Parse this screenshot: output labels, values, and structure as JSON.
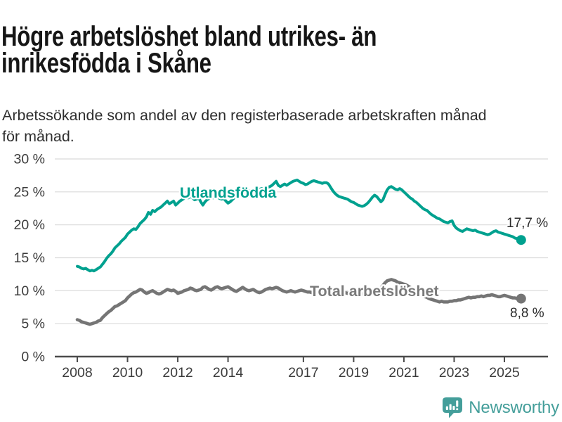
{
  "header": {
    "title_lines": [
      "Högre arbetslöshet bland utrikes- än",
      "inrikesfödda i Skåne"
    ],
    "subtitle_lines": [
      "Arbetssökande som andel av den registerbaserade arbetskraften månad",
      "för månad."
    ]
  },
  "footer": {
    "brand": "Newsworthy",
    "brand_color": "#449e9a"
  },
  "chart_data": {
    "type": "line",
    "title": "Högre arbetslöshet bland utrikes- än inrikesfödda i Skåne",
    "subtitle": "Arbetssökande som andel av den registerbaserade arbetskraften månad för månad.",
    "unit": "%",
    "grid": "horizontal",
    "legend_position": "inline-labels",
    "x": {
      "start_year": 2008,
      "start_month": 1,
      "end_year": 2025,
      "end_month": 9,
      "frequency": "monthly"
    },
    "y_axis": {
      "min": 0,
      "max": 30,
      "ticks": [
        {
          "value": 0,
          "label": "0 %"
        },
        {
          "value": 5,
          "label": "5 %"
        },
        {
          "value": 10,
          "label": "10 %"
        },
        {
          "value": 15,
          "label": "15 %"
        },
        {
          "value": 20,
          "label": "20 %"
        },
        {
          "value": 25,
          "label": "25 %"
        },
        {
          "value": 30,
          "label": "30 %"
        }
      ]
    },
    "x_axis": {
      "ticks": [
        {
          "value": 2008,
          "label": "2008"
        },
        {
          "value": 2010,
          "label": "2010"
        },
        {
          "value": 2012,
          "label": "2012"
        },
        {
          "value": 2014,
          "label": "2014"
        },
        {
          "value": 2017,
          "label": "2017"
        },
        {
          "value": 2019,
          "label": "2019"
        },
        {
          "value": 2021,
          "label": "2021"
        },
        {
          "value": 2023,
          "label": "2023"
        },
        {
          "value": 2025,
          "label": "2025"
        }
      ]
    },
    "series": [
      {
        "name": "Utlandsfödda",
        "color": "#00a18f",
        "line_width": 4,
        "end_value": 17.7,
        "end_label": "17,7 %",
        "values": [
          13.7,
          13.6,
          13.4,
          13.3,
          13.4,
          13.2,
          13.0,
          13.1,
          13.0,
          13.2,
          13.4,
          13.6,
          14.0,
          14.4,
          14.9,
          15.3,
          15.6,
          16.0,
          16.5,
          16.8,
          17.1,
          17.5,
          17.8,
          18.1,
          18.6,
          18.9,
          19.2,
          19.4,
          19.3,
          19.7,
          20.2,
          20.5,
          20.8,
          21.2,
          21.9,
          21.6,
          22.2,
          22.0,
          22.3,
          22.5,
          22.7,
          23.0,
          23.3,
          23.6,
          23.2,
          23.4,
          23.6,
          23.0,
          23.3,
          23.6,
          23.8,
          24.0,
          24.2,
          24.1,
          24.3,
          24.1,
          23.8,
          23.9,
          24.1,
          23.5,
          23.0,
          23.5,
          23.8,
          24.0,
          24.2,
          24.1,
          24.3,
          24.2,
          24.0,
          23.9,
          24.0,
          23.6,
          23.3,
          23.5,
          23.8,
          24.1,
          24.4,
          24.6,
          24.8,
          24.9,
          25.0,
          25.1,
          25.2,
          25.1,
          25.1,
          25.2,
          25.3,
          25.4,
          25.5,
          25.4,
          25.6,
          25.7,
          25.8,
          26.0,
          26.3,
          26.6,
          26.0,
          25.8,
          26.0,
          26.2,
          26.0,
          26.2,
          26.4,
          26.6,
          26.7,
          26.8,
          26.6,
          26.4,
          26.3,
          26.1,
          26.2,
          26.4,
          26.6,
          26.7,
          26.6,
          26.5,
          26.4,
          26.3,
          26.4,
          26.4,
          26.2,
          25.7,
          25.2,
          24.8,
          24.5,
          24.3,
          24.2,
          24.1,
          24.0,
          23.9,
          23.7,
          23.5,
          23.4,
          23.2,
          23.0,
          22.9,
          22.8,
          22.9,
          23.1,
          23.4,
          23.8,
          24.2,
          24.5,
          24.3,
          23.9,
          23.5,
          23.8,
          24.6,
          25.3,
          25.7,
          25.8,
          25.6,
          25.4,
          25.3,
          25.5,
          25.3,
          25.0,
          24.7,
          24.4,
          24.1,
          23.9,
          23.6,
          23.4,
          23.1,
          22.8,
          22.5,
          22.3,
          22.2,
          21.9,
          21.6,
          21.4,
          21.2,
          21.0,
          20.9,
          20.7,
          20.5,
          20.4,
          20.3,
          20.5,
          20.6,
          19.9,
          19.5,
          19.3,
          19.1,
          19.0,
          19.2,
          19.4,
          19.3,
          19.2,
          19.1,
          19.2,
          19.0,
          18.9,
          18.8,
          18.7,
          18.6,
          18.5,
          18.6,
          18.8,
          19.0,
          19.1,
          18.9,
          18.8,
          18.7,
          18.6,
          18.5,
          18.4,
          18.3,
          18.2,
          18.0,
          17.9,
          17.8,
          17.7
        ]
      },
      {
        "name": "Total arbetslöshet",
        "color": "#757575",
        "line_width": 4.6,
        "end_value": 8.8,
        "end_label": "8,8 %",
        "values": [
          5.6,
          5.5,
          5.3,
          5.2,
          5.1,
          5.0,
          4.9,
          5.0,
          5.1,
          5.2,
          5.4,
          5.5,
          5.9,
          6.2,
          6.5,
          6.8,
          7.0,
          7.3,
          7.6,
          7.7,
          7.9,
          8.1,
          8.3,
          8.5,
          8.9,
          9.2,
          9.5,
          9.7,
          9.8,
          10.0,
          10.2,
          10.1,
          9.8,
          9.6,
          9.7,
          9.9,
          10.0,
          9.8,
          9.6,
          9.5,
          9.6,
          9.8,
          10.0,
          10.2,
          10.1,
          10.0,
          10.1,
          9.9,
          9.6,
          9.7,
          9.8,
          10.0,
          10.1,
          10.2,
          10.4,
          10.3,
          10.1,
          10.0,
          10.1,
          10.2,
          10.5,
          10.6,
          10.4,
          10.2,
          10.1,
          10.3,
          10.5,
          10.6,
          10.4,
          10.3,
          10.4,
          10.5,
          10.6,
          10.4,
          10.2,
          10.0,
          9.9,
          10.1,
          10.3,
          10.5,
          10.3,
          10.1,
          10.0,
          10.1,
          10.2,
          10.0,
          9.8,
          9.7,
          9.8,
          10.0,
          10.2,
          10.3,
          10.4,
          10.3,
          10.4,
          10.5,
          10.4,
          10.2,
          10.0,
          9.9,
          9.8,
          9.9,
          10.0,
          9.9,
          9.8,
          9.9,
          10.0,
          10.1,
          10.0,
          9.9,
          9.8,
          9.8,
          9.7,
          9.8,
          9.9,
          10.0,
          9.9,
          9.8,
          9.9,
          10.0,
          9.9,
          9.8,
          9.7,
          9.6,
          9.5,
          9.6,
          9.7,
          9.8,
          9.7,
          9.6,
          9.7,
          9.8,
          9.7,
          9.6,
          9.5,
          9.4,
          9.5,
          9.6,
          9.8,
          9.9,
          9.8,
          9.9,
          10.0,
          10.1,
          10.3,
          10.4,
          10.8,
          11.2,
          11.5,
          11.6,
          11.7,
          11.6,
          11.5,
          11.3,
          11.2,
          11.1,
          11.0,
          10.9,
          10.7,
          10.5,
          10.3,
          10.1,
          9.9,
          9.7,
          9.5,
          9.3,
          9.1,
          9.0,
          8.8,
          8.7,
          8.6,
          8.5,
          8.4,
          8.3,
          8.4,
          8.3,
          8.3,
          8.3,
          8.4,
          8.4,
          8.5,
          8.5,
          8.6,
          8.6,
          8.7,
          8.8,
          8.9,
          9.0,
          8.9,
          9.0,
          9.0,
          9.1,
          9.1,
          9.2,
          9.1,
          9.2,
          9.3,
          9.3,
          9.4,
          9.3,
          9.2,
          9.1,
          9.1,
          9.2,
          9.3,
          9.2,
          9.1,
          9.0,
          8.9,
          8.9,
          8.8,
          8.8,
          8.8
        ]
      }
    ]
  }
}
